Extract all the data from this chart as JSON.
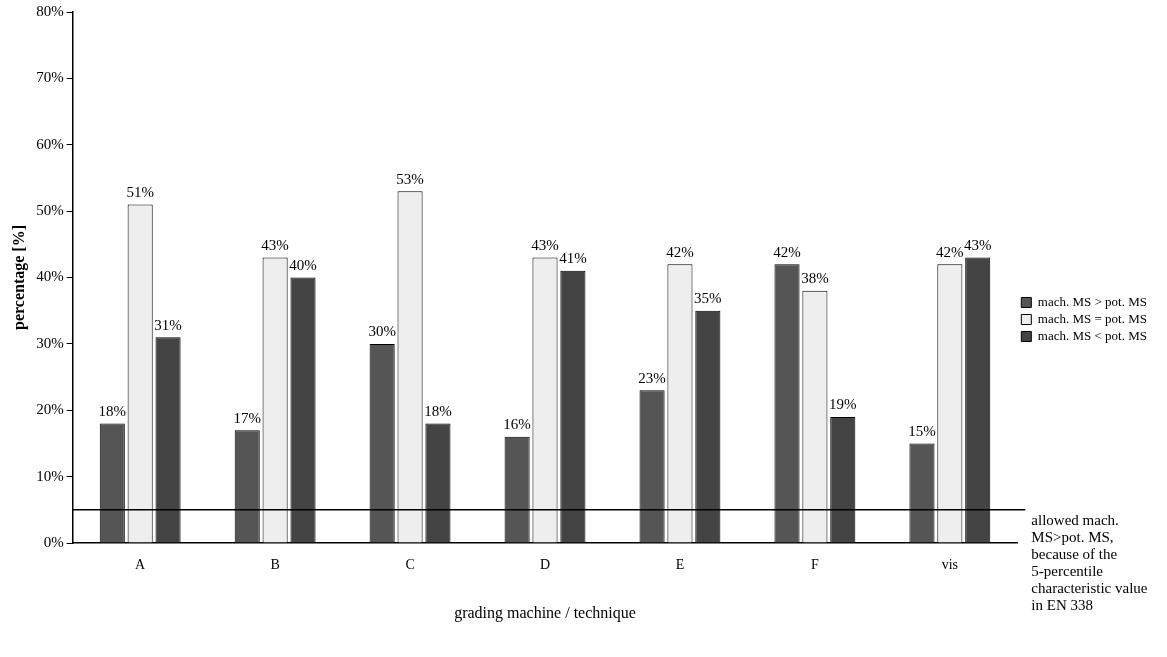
{
  "chart_data": {
    "type": "bar",
    "xlabel": "grading machine / technique",
    "ylabel": "percentage [%]",
    "categories": [
      "A",
      "B",
      "C",
      "D",
      "E",
      "F",
      "vis"
    ],
    "series": [
      {
        "name": "mach. MS > pot. MS",
        "color": "#555555",
        "values": [
          18,
          17,
          30,
          16,
          23,
          42,
          15
        ],
        "value_labels": [
          "18%",
          "17%",
          "30%",
          "16%",
          "23%",
          "42%",
          "15%"
        ]
      },
      {
        "name": "mach. MS = pot. MS",
        "color": "#eeeeee",
        "values": [
          51,
          43,
          53,
          43,
          42,
          38,
          42
        ],
        "value_labels": [
          "51%",
          "43%",
          "53%",
          "43%",
          "42%",
          "38%",
          "42%"
        ]
      },
      {
        "name": "mach. MS < pot. MS",
        "color": "#444444",
        "values": [
          31,
          40,
          18,
          41,
          35,
          19,
          43
        ],
        "value_labels": [
          "31%",
          "40%",
          "18%",
          "41%",
          "35%",
          "19%",
          "43%"
        ]
      }
    ],
    "ylim": [
      0,
      80
    ],
    "yticks": [
      {
        "value": 0,
        "label": "0%"
      },
      {
        "value": 10,
        "label": "10%"
      },
      {
        "value": 20,
        "label": "20%"
      },
      {
        "value": 30,
        "label": "30%"
      },
      {
        "value": 40,
        "label": "40%"
      },
      {
        "value": 50,
        "label": "50%"
      },
      {
        "value": 60,
        "label": "60%"
      },
      {
        "value": 70,
        "label": "70%"
      },
      {
        "value": 80,
        "label": "80%"
      }
    ],
    "ref_lines": [
      {
        "axis": "y",
        "value": 5,
        "label": "allowed mach. MS>pot. MS, because of the 5-percentile characteristic value in EN 338",
        "color": "#000000"
      }
    ],
    "grid": false,
    "legend": "right"
  }
}
